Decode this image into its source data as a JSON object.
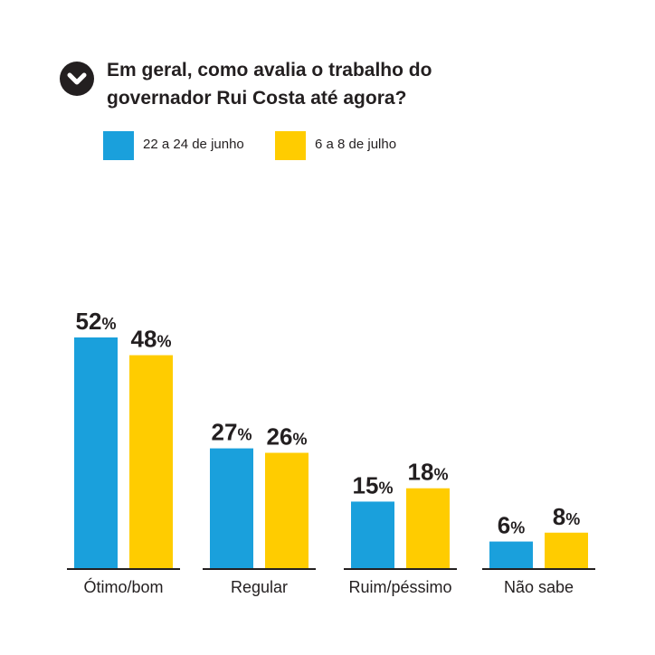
{
  "question": {
    "line1": "Em geral, como avalia o trabalho do",
    "line2": "governador Rui Costa até agora?"
  },
  "icon": "chevron-down-icon",
  "colors": {
    "series1": "#1aa0dc",
    "series2": "#ffcc00",
    "text": "#231f20",
    "axis": "#231f20"
  },
  "chart_data": {
    "type": "bar",
    "title": "Em geral, como avalia o trabalho do governador Rui Costa até agora?",
    "categories": [
      "Ótimo/bom",
      "Regular",
      "Ruim/péssimo",
      "Não sabe"
    ],
    "series": [
      {
        "name": "22 a 24 de junho",
        "values": [
          52,
          27,
          15,
          6
        ],
        "labels": [
          "52",
          "27",
          "15",
          "6"
        ]
      },
      {
        "name": "6 a 8 de julho",
        "values": [
          48,
          26,
          18,
          8
        ],
        "labels": [
          "48",
          "26",
          "18",
          "8"
        ]
      }
    ],
    "value_suffix": "%",
    "ylim": [
      0,
      52
    ],
    "grid": false,
    "legend_position": "top-left"
  }
}
